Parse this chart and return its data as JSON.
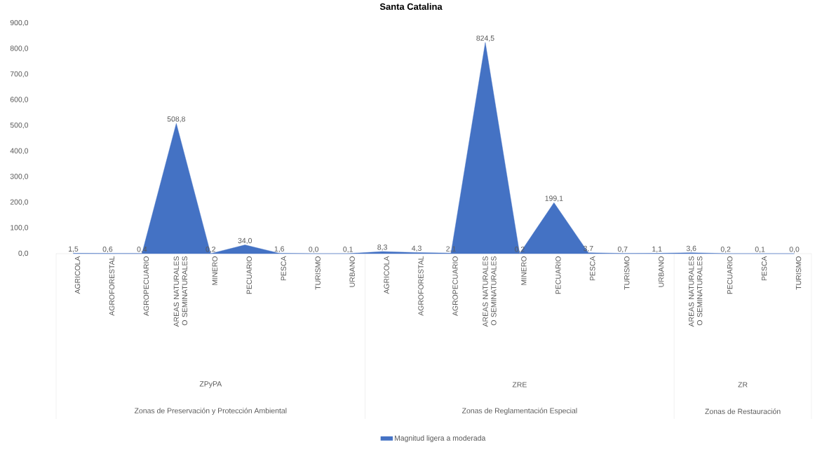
{
  "chart_data": {
    "type": "area",
    "title": "Santa Catalina",
    "categories": [
      "AGRICOLA",
      "AGROFORESTAL",
      "AGROPECUARIO",
      "AREAS NATURALES O SEMINATURALES",
      "MINERO",
      "PECUARIO",
      "PESCA",
      "TURISMO",
      "URBANO",
      "AGRICOLA",
      "AGROFORESTAL",
      "AGROPECUARIO",
      "AREAS NATURALES O SEMINATURALES",
      "MINERO",
      "PECUARIO",
      "PESCA",
      "TURISMO",
      "URBANO",
      "AREAS NATURALES O SEMINATURALES",
      "PECUARIO",
      "PESCA",
      "TURISMO"
    ],
    "series": [
      {
        "name": "Magnitud ligera a moderada",
        "color": "#4472c4",
        "values": [
          1.5,
          0.6,
          0.4,
          508.8,
          0.2,
          34.0,
          1.6,
          0.0,
          0.1,
          8.3,
          4.3,
          2.1,
          824.5,
          0.2,
          199.1,
          3.7,
          0.7,
          1.1,
          3.6,
          0.2,
          0.1,
          0.0
        ],
        "value_labels": [
          "1,5",
          "0,6",
          "0,4",
          "508,8",
          "0,2",
          "34,0",
          "1,6",
          "0,0",
          "0,1",
          "8,3",
          "4,3",
          "2,1",
          "824,5",
          "0,2",
          "199,1",
          "3,7",
          "0,7",
          "1,1",
          "3,6",
          "0,2",
          "0,1",
          "0,0"
        ]
      }
    ],
    "ylim": [
      0,
      900
    ],
    "yticks": [
      {
        "value": 0,
        "label": "0,0"
      },
      {
        "value": 100,
        "label": "100,0"
      },
      {
        "value": 200,
        "label": "200,0"
      },
      {
        "value": 300,
        "label": "300,0"
      },
      {
        "value": 400,
        "label": "400,0"
      },
      {
        "value": 500,
        "label": "500,0"
      },
      {
        "value": 600,
        "label": "600,0"
      },
      {
        "value": 700,
        "label": "700,0"
      },
      {
        "value": 800,
        "label": "800,0"
      },
      {
        "value": 900,
        "label": "900,0"
      }
    ],
    "annotations": [
      "ZPyPA",
      "Zonas de Preservación y Protección Ambiental",
      "ZRE",
      "Zonas de Reglamentación Especial",
      "ZR",
      "Zonas de Restauración"
    ],
    "legend": "bottom",
    "grid": false
  }
}
